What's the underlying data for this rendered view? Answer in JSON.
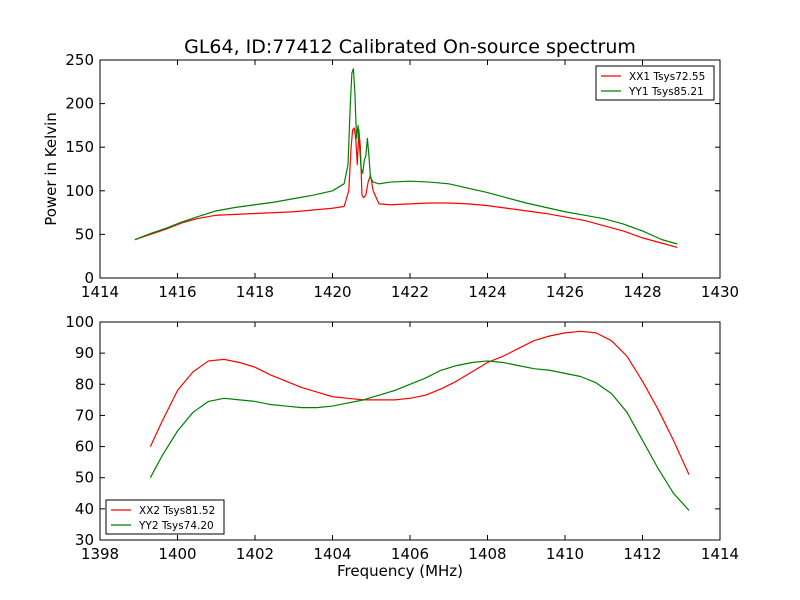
{
  "figure": {
    "title": "GL64, ID:77412 Calibrated On-source spectrum"
  },
  "chart_data": [
    {
      "type": "line",
      "title": "GL64, ID:77412 Calibrated On-source spectrum",
      "xlabel": "",
      "ylabel": "Power in Kelvin",
      "xlim": [
        1414,
        1430
      ],
      "ylim": [
        0,
        250
      ],
      "xticks": [
        1414,
        1416,
        1418,
        1420,
        1422,
        1424,
        1426,
        1428,
        1430
      ],
      "yticks": [
        0,
        50,
        100,
        150,
        200,
        250
      ],
      "grid": false,
      "legend_loc": "upper right",
      "series": [
        {
          "name": "XX1 Tsys72.55",
          "color": "#ff0000",
          "x": [
            1414.9,
            1415.3,
            1415.7,
            1416.1,
            1416.5,
            1417.0,
            1417.5,
            1418.0,
            1418.5,
            1419.0,
            1419.5,
            1420.0,
            1420.3,
            1420.42,
            1420.48,
            1420.52,
            1420.56,
            1420.6,
            1420.64,
            1420.68,
            1420.72,
            1420.76,
            1420.8,
            1420.86,
            1420.92,
            1420.98,
            1421.05,
            1421.2,
            1421.5,
            1422.0,
            1422.5,
            1423.0,
            1423.5,
            1424.0,
            1424.5,
            1425.0,
            1425.5,
            1426.0,
            1426.5,
            1427.0,
            1427.5,
            1428.0,
            1428.5,
            1428.9
          ],
          "y": [
            44,
            50,
            56,
            63,
            68,
            72,
            73,
            74,
            75,
            76,
            78,
            80,
            82,
            100,
            150,
            170,
            172,
            160,
            130,
            170,
            150,
            95,
            92,
            95,
            110,
            118,
            100,
            85,
            84,
            85,
            86,
            86,
            85,
            83,
            80,
            77,
            74,
            70,
            66,
            60,
            54,
            46,
            40,
            35
          ]
        },
        {
          "name": "YY1 Tsys85.21",
          "color": "#008000",
          "x": [
            1414.9,
            1415.3,
            1415.7,
            1416.1,
            1416.5,
            1417.0,
            1417.5,
            1418.0,
            1418.5,
            1419.0,
            1419.5,
            1420.0,
            1420.3,
            1420.4,
            1420.46,
            1420.5,
            1420.54,
            1420.58,
            1420.62,
            1420.66,
            1420.7,
            1420.74,
            1420.78,
            1420.82,
            1420.86,
            1420.9,
            1420.94,
            1420.98,
            1421.05,
            1421.2,
            1421.5,
            1422.0,
            1422.5,
            1423.0,
            1423.5,
            1424.0,
            1424.5,
            1425.0,
            1425.5,
            1426.0,
            1426.5,
            1427.0,
            1427.5,
            1428.0,
            1428.5,
            1428.9
          ],
          "y": [
            44,
            51,
            57,
            64,
            70,
            77,
            81,
            84,
            87,
            91,
            95,
            100,
            108,
            130,
            200,
            235,
            240,
            210,
            160,
            175,
            150,
            125,
            120,
            135,
            140,
            160,
            140,
            115,
            110,
            108,
            110,
            111,
            110,
            108,
            103,
            98,
            92,
            86,
            81,
            76,
            72,
            68,
            62,
            54,
            44,
            39
          ]
        }
      ]
    },
    {
      "type": "line",
      "title": "",
      "xlabel": "Frequency (MHz)",
      "ylabel": "",
      "xlim": [
        1398,
        1414
      ],
      "ylim": [
        30,
        100
      ],
      "xticks": [
        1398,
        1400,
        1402,
        1404,
        1406,
        1408,
        1410,
        1412,
        1414
      ],
      "yticks": [
        30,
        40,
        50,
        60,
        70,
        80,
        90,
        100
      ],
      "grid": false,
      "legend_loc": "lower left",
      "series": [
        {
          "name": "XX2 Tsys81.52",
          "color": "#ff0000",
          "x": [
            1399.3,
            1399.6,
            1400.0,
            1400.4,
            1400.8,
            1401.2,
            1401.6,
            1402.0,
            1402.4,
            1402.8,
            1403.2,
            1403.6,
            1404.0,
            1404.4,
            1404.8,
            1405.2,
            1405.6,
            1406.0,
            1406.4,
            1406.8,
            1407.2,
            1407.6,
            1408.0,
            1408.4,
            1408.8,
            1409.2,
            1409.6,
            1410.0,
            1410.4,
            1410.8,
            1411.2,
            1411.6,
            1412.0,
            1412.4,
            1412.8,
            1413.2
          ],
          "y": [
            60,
            68,
            78,
            84,
            87.5,
            88,
            87,
            85.5,
            83,
            81,
            79,
            77.5,
            76,
            75.5,
            75,
            75,
            75,
            75.5,
            76.5,
            78.5,
            81,
            84,
            87,
            89,
            91.5,
            94,
            95.5,
            96.5,
            97,
            96.5,
            94,
            89,
            81,
            72,
            62,
            51
          ]
        },
        {
          "name": "YY2 Tsys74.20",
          "color": "#008000",
          "x": [
            1399.3,
            1399.6,
            1400.0,
            1400.4,
            1400.8,
            1401.2,
            1401.6,
            1402.0,
            1402.4,
            1402.8,
            1403.2,
            1403.6,
            1404.0,
            1404.4,
            1404.8,
            1405.2,
            1405.6,
            1406.0,
            1406.4,
            1406.8,
            1407.2,
            1407.6,
            1408.0,
            1408.4,
            1408.8,
            1409.2,
            1409.6,
            1410.0,
            1410.4,
            1410.8,
            1411.2,
            1411.6,
            1412.0,
            1412.4,
            1412.8,
            1413.2
          ],
          "y": [
            50,
            57,
            65,
            71,
            74.5,
            75.5,
            75,
            74.5,
            73.5,
            73,
            72.5,
            72.5,
            73,
            74,
            75,
            76.5,
            78,
            80,
            82,
            84.5,
            86,
            87,
            87.5,
            87,
            86,
            85,
            84.5,
            83.5,
            82.5,
            80.5,
            77,
            71,
            62,
            53,
            45,
            39.5
          ]
        }
      ]
    }
  ]
}
